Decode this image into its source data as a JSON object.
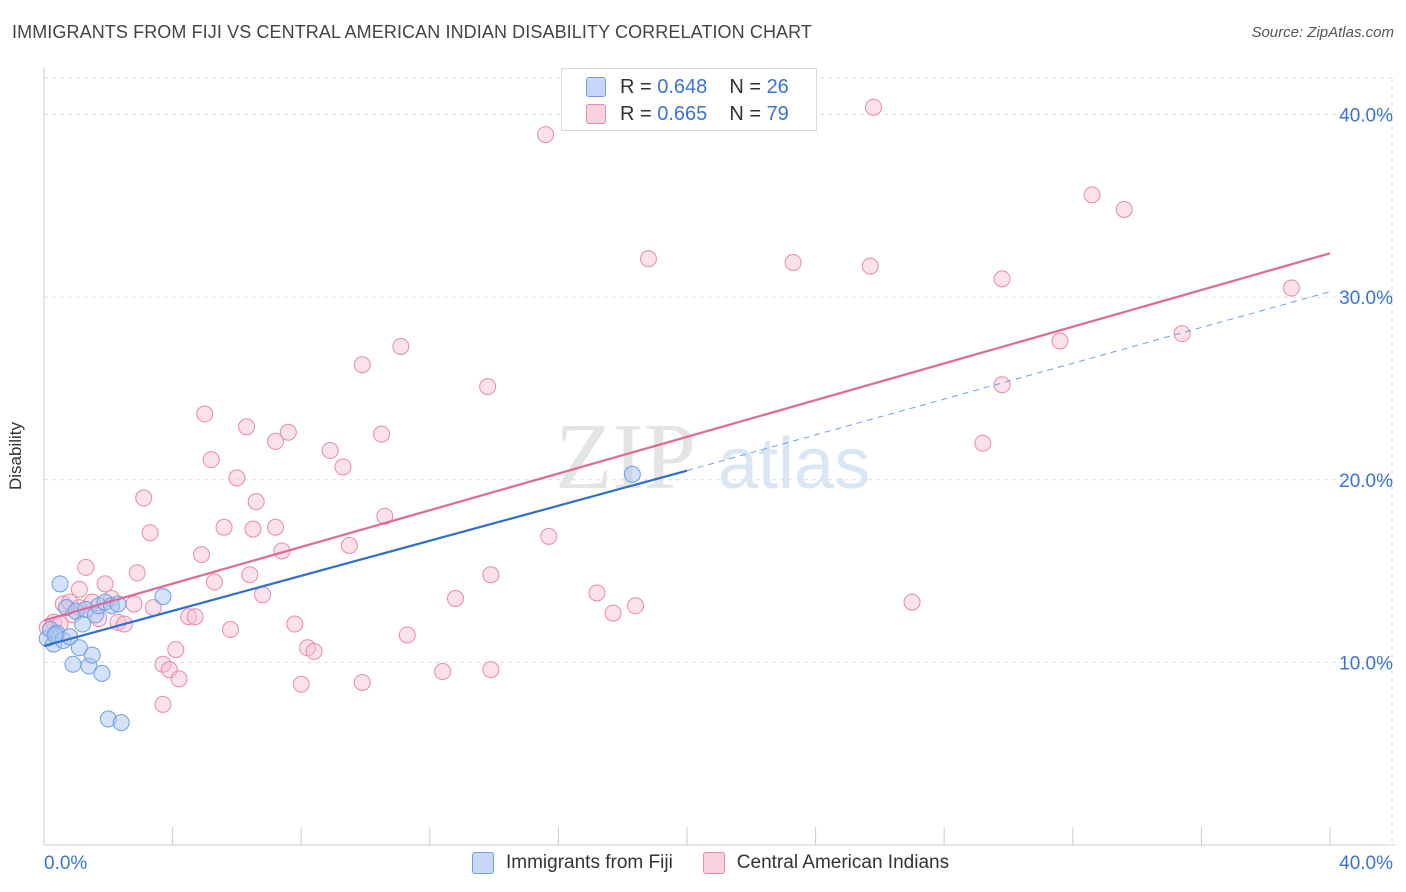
{
  "header": {
    "title": "IMMIGRANTS FROM FIJI VS CENTRAL AMERICAN INDIAN DISABILITY CORRELATION CHART",
    "source": "Source: ZipAtlas.com"
  },
  "watermark": {
    "zip": "ZIP",
    "atlas": "atlas"
  },
  "legend": {
    "fiji": {
      "r_label": "R =",
      "r_value": "0.648",
      "n_label": "N =",
      "n_value": "26"
    },
    "cai": {
      "r_label": "R =",
      "r_value": "0.665",
      "n_label": "N =",
      "n_value": "79"
    }
  },
  "colors": {
    "fiji_fill": "#a8c6f0",
    "fiji_stroke": "#6f9fe0",
    "fiji_line": "#2f6fce",
    "cai_fill": "#f6bcd0",
    "cai_stroke": "#e88aa9",
    "cai_line": "#e06a93",
    "tick_text": "#3a73d4",
    "grid": "#dddddd"
  },
  "chart_data": {
    "type": "scatter",
    "title": "IMMIGRANTS FROM FIJI VS CENTRAL AMERICAN INDIAN DISABILITY CORRELATION CHART",
    "xlabel": "",
    "ylabel": "Disability",
    "xlim": [
      0,
      40
    ],
    "ylim": [
      0,
      42
    ],
    "x_tick_labels": [
      "0.0%",
      "40.0%"
    ],
    "y_ticks": [
      10,
      20,
      30,
      40
    ],
    "y_tick_labels": [
      "10.0%",
      "20.0%",
      "30.0%",
      "40.0%"
    ],
    "grid": true,
    "legend_position": "top-center",
    "series": [
      {
        "name": "Immigrants from Fiji",
        "r": 0.648,
        "n": 26,
        "points": [
          [
            0.1,
            11.3
          ],
          [
            0.2,
            11.8
          ],
          [
            0.3,
            11.0
          ],
          [
            0.4,
            11.6
          ],
          [
            0.5,
            14.3
          ],
          [
            0.6,
            11.2
          ],
          [
            0.7,
            13.0
          ],
          [
            0.8,
            11.4
          ],
          [
            0.9,
            9.9
          ],
          [
            1.0,
            12.8
          ],
          [
            1.1,
            10.8
          ],
          [
            1.2,
            12.1
          ],
          [
            1.3,
            12.9
          ],
          [
            1.4,
            9.8
          ],
          [
            1.5,
            10.4
          ],
          [
            1.6,
            12.6
          ],
          [
            1.7,
            13.1
          ],
          [
            1.8,
            9.4
          ],
          [
            1.9,
            13.3
          ],
          [
            2.0,
            6.9
          ],
          [
            2.1,
            13.1
          ],
          [
            2.3,
            13.2
          ],
          [
            2.4,
            6.7
          ],
          [
            3.7,
            13.6
          ],
          [
            18.3,
            20.3
          ],
          [
            0.35,
            11.5
          ]
        ],
        "trend": {
          "x": [
            0,
            20
          ],
          "y": [
            10.9,
            20.5
          ]
        },
        "trend_extension": {
          "x": [
            20,
            40
          ],
          "y": [
            20.5,
            30.3
          ]
        }
      },
      {
        "name": "Central American Indians",
        "r": 0.665,
        "n": 79,
        "points": [
          [
            0.1,
            11.9
          ],
          [
            0.3,
            12.2
          ],
          [
            0.5,
            12.1
          ],
          [
            0.6,
            13.2
          ],
          [
            0.8,
            13.3
          ],
          [
            0.9,
            12.6
          ],
          [
            1.1,
            13.0
          ],
          [
            1.1,
            14.0
          ],
          [
            1.3,
            15.2
          ],
          [
            1.5,
            13.3
          ],
          [
            1.7,
            12.4
          ],
          [
            1.9,
            14.3
          ],
          [
            2.1,
            13.5
          ],
          [
            2.3,
            12.2
          ],
          [
            2.5,
            12.1
          ],
          [
            2.8,
            13.2
          ],
          [
            2.9,
            14.9
          ],
          [
            3.1,
            19.0
          ],
          [
            3.3,
            17.1
          ],
          [
            3.4,
            13.0
          ],
          [
            3.7,
            9.9
          ],
          [
            3.7,
            7.7
          ],
          [
            3.9,
            9.6
          ],
          [
            4.1,
            10.7
          ],
          [
            4.2,
            9.1
          ],
          [
            4.5,
            12.5
          ],
          [
            4.7,
            12.5
          ],
          [
            4.9,
            15.9
          ],
          [
            5.0,
            23.6
          ],
          [
            5.2,
            21.1
          ],
          [
            5.3,
            14.4
          ],
          [
            5.6,
            17.4
          ],
          [
            5.8,
            11.8
          ],
          [
            6.0,
            20.1
          ],
          [
            6.3,
            22.9
          ],
          [
            6.4,
            14.8
          ],
          [
            6.5,
            17.3
          ],
          [
            6.6,
            18.8
          ],
          [
            6.8,
            13.7
          ],
          [
            7.2,
            22.1
          ],
          [
            7.2,
            17.4
          ],
          [
            7.4,
            16.1
          ],
          [
            7.6,
            22.6
          ],
          [
            7.8,
            12.1
          ],
          [
            8.0,
            8.8
          ],
          [
            8.2,
            10.8
          ],
          [
            8.4,
            10.6
          ],
          [
            8.9,
            21.6
          ],
          [
            9.3,
            20.7
          ],
          [
            9.5,
            16.4
          ],
          [
            9.9,
            26.3
          ],
          [
            9.9,
            8.9
          ],
          [
            10.5,
            22.5
          ],
          [
            10.6,
            18.0
          ],
          [
            11.1,
            27.3
          ],
          [
            11.3,
            11.5
          ],
          [
            12.4,
            9.5
          ],
          [
            12.8,
            13.5
          ],
          [
            13.8,
            25.1
          ],
          [
            13.9,
            9.6
          ],
          [
            13.9,
            14.8
          ],
          [
            15.6,
            38.9
          ],
          [
            15.7,
            16.9
          ],
          [
            17.2,
            13.8
          ],
          [
            17.7,
            12.7
          ],
          [
            18.4,
            13.1
          ],
          [
            18.8,
            32.1
          ],
          [
            23.3,
            31.9
          ],
          [
            25.7,
            31.7
          ],
          [
            25.8,
            40.4
          ],
          [
            27.0,
            13.3
          ],
          [
            29.2,
            22.0
          ],
          [
            29.8,
            25.2
          ],
          [
            29.8,
            31.0
          ],
          [
            31.6,
            27.6
          ],
          [
            32.6,
            35.6
          ],
          [
            33.6,
            34.8
          ],
          [
            35.4,
            28.0
          ],
          [
            38.8,
            30.5
          ]
        ],
        "trend": {
          "x": [
            0,
            40
          ],
          "y": [
            12.3,
            32.4
          ]
        }
      }
    ]
  }
}
